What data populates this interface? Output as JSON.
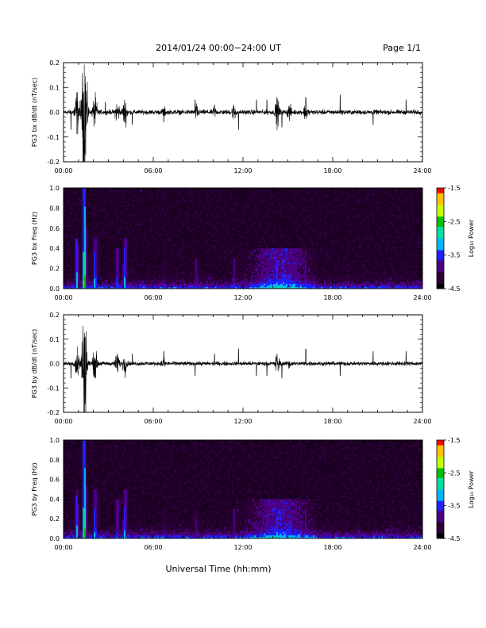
{
  "header": {
    "title": "2014/01/24  00:00−24:00 UT",
    "page": "Page 1/1"
  },
  "x_axis": {
    "label": "Universal Time (hh:mm)",
    "range_hours": [
      0,
      24
    ],
    "tick_labels": [
      "00:00",
      "06:00",
      "12:00",
      "18:00",
      "24:00"
    ],
    "tick_values": [
      0,
      6,
      12,
      18,
      24
    ]
  },
  "colorbar": {
    "label": "Log₁₀ Power",
    "range": [
      -4.5,
      -1.5
    ],
    "tick_labels": [
      "-1.5",
      "-2.5",
      "-3.5",
      "-4.5"
    ],
    "tick_values": [
      -1.5,
      -2.5,
      -3.5,
      -4.5
    ],
    "colors": [
      "#000000",
      "#2a0036",
      "#4b0082",
      "#2020ff",
      "#00b4ff",
      "#00e0a0",
      "#00c000",
      "#c0ff00",
      "#ffc000",
      "#ff0000"
    ]
  },
  "chart_data": [
    {
      "type": "line",
      "ylabel": "PG3 bx dB/dt (nT/sec)",
      "ylim": [
        -0.2,
        0.2
      ],
      "yticks": [
        -0.2,
        -0.1,
        0.0,
        0.1,
        0.2
      ],
      "ytick_labels": [
        "-0.2",
        "-0.1",
        "0.0",
        "0.1",
        "0.2"
      ],
      "x_hours_range": [
        0,
        24
      ],
      "noise_baseline_amplitude": 0.008,
      "bursts": [
        {
          "t_hours": 1.4,
          "amplitude": 0.25
        },
        {
          "t_hours": 0.9,
          "amplitude": 0.08
        },
        {
          "t_hours": 2.1,
          "amplitude": 0.06
        },
        {
          "t_hours": 3.6,
          "amplitude": 0.04
        },
        {
          "t_hours": 4.1,
          "amplitude": 0.05
        },
        {
          "t_hours": 6.7,
          "amplitude": 0.02
        },
        {
          "t_hours": 8.9,
          "amplitude": 0.03
        },
        {
          "t_hours": 10.1,
          "amplitude": 0.02
        },
        {
          "t_hours": 11.4,
          "amplitude": 0.03
        },
        {
          "t_hours": 14.3,
          "amplitude": 0.05
        },
        {
          "t_hours": 15.1,
          "amplitude": 0.03
        },
        {
          "t_hours": 16.2,
          "amplitude": 0.03
        }
      ],
      "spikes": [
        {
          "t_hours": 0.5,
          "value": -0.07
        },
        {
          "t_hours": 2.8,
          "value": 0.04
        },
        {
          "t_hours": 4.6,
          "value": -0.05
        },
        {
          "t_hours": 6.7,
          "value": -0.04
        },
        {
          "t_hours": 8.8,
          "value": 0.05
        },
        {
          "t_hours": 10.1,
          "value": 0.03
        },
        {
          "t_hours": 11.7,
          "value": -0.07
        },
        {
          "t_hours": 12.9,
          "value": 0.05
        },
        {
          "t_hours": 13.6,
          "value": 0.05
        },
        {
          "t_hours": 14.6,
          "value": -0.06
        },
        {
          "t_hours": 16.2,
          "value": 0.06
        },
        {
          "t_hours": 18.5,
          "value": 0.07
        },
        {
          "t_hours": 20.7,
          "value": -0.05
        },
        {
          "t_hours": 22.9,
          "value": 0.05
        }
      ]
    },
    {
      "type": "heatmap",
      "ylabel": "PG3 bx Freq (Hz)",
      "ylim": [
        0.0,
        1.0
      ],
      "yticks": [
        0.0,
        0.2,
        0.4,
        0.6,
        0.8,
        1.0
      ],
      "ytick_labels": [
        "0.0",
        "0.2",
        "0.4",
        "0.6",
        "0.8",
        "1.0"
      ],
      "x_hours_range": [
        0,
        24
      ],
      "background_log_power": -4.3,
      "bursts": [
        {
          "t_hours": 1.4,
          "level": -2.2,
          "fmax": 1.0
        },
        {
          "t_hours": 0.9,
          "level": -2.9,
          "fmax": 0.5
        },
        {
          "t_hours": 2.1,
          "level": -3.0,
          "fmax": 0.5
        },
        {
          "t_hours": 3.6,
          "level": -3.3,
          "fmax": 0.4
        },
        {
          "t_hours": 4.1,
          "level": -3.0,
          "fmax": 0.5
        },
        {
          "t_hours": 6.7,
          "level": -3.8,
          "fmax": 0.3
        },
        {
          "t_hours": 8.9,
          "level": -3.6,
          "fmax": 0.3
        },
        {
          "t_hours": 11.4,
          "level": -3.5,
          "fmax": 0.3
        },
        {
          "t_hours": 14.3,
          "level": -3.1,
          "fmax": 0.4
        },
        {
          "t_hours": 15.1,
          "level": -3.3,
          "fmax": 0.4
        },
        {
          "t_hours": 16.2,
          "level": -3.4,
          "fmax": 0.3
        }
      ]
    },
    {
      "type": "line",
      "ylabel": "PG3 by dB/dt (nT/sec)",
      "ylim": [
        -0.2,
        0.2
      ],
      "yticks": [
        -0.2,
        -0.1,
        0.0,
        0.1,
        0.2
      ],
      "ytick_labels": [
        "-0.2",
        "-0.1",
        "0.0",
        "0.1",
        "0.2"
      ],
      "x_hours_range": [
        0,
        24
      ],
      "noise_baseline_amplitude": 0.007,
      "bursts": [
        {
          "t_hours": 1.4,
          "amplitude": 0.2
        },
        {
          "t_hours": 0.9,
          "amplitude": 0.06
        },
        {
          "t_hours": 2.1,
          "amplitude": 0.05
        },
        {
          "t_hours": 3.6,
          "amplitude": 0.04
        },
        {
          "t_hours": 4.1,
          "amplitude": 0.04
        },
        {
          "t_hours": 6.7,
          "amplitude": 0.02
        },
        {
          "t_hours": 14.3,
          "amplitude": 0.04
        },
        {
          "t_hours": 15.1,
          "amplitude": 0.02
        }
      ],
      "spikes": [
        {
          "t_hours": 0.5,
          "value": -0.06
        },
        {
          "t_hours": 4.6,
          "value": 0.04
        },
        {
          "t_hours": 6.7,
          "value": 0.05
        },
        {
          "t_hours": 8.8,
          "value": -0.05
        },
        {
          "t_hours": 10.1,
          "value": 0.04
        },
        {
          "t_hours": 11.7,
          "value": 0.06
        },
        {
          "t_hours": 12.9,
          "value": -0.05
        },
        {
          "t_hours": 13.6,
          "value": -0.05
        },
        {
          "t_hours": 14.6,
          "value": -0.06
        },
        {
          "t_hours": 16.2,
          "value": 0.06
        },
        {
          "t_hours": 18.5,
          "value": -0.05
        },
        {
          "t_hours": 20.7,
          "value": 0.05
        },
        {
          "t_hours": 22.9,
          "value": 0.05
        }
      ]
    },
    {
      "type": "heatmap",
      "ylabel": "PG3 by Freq (Hz)",
      "ylim": [
        0.0,
        1.0
      ],
      "yticks": [
        0.0,
        0.2,
        0.4,
        0.6,
        0.8,
        1.0
      ],
      "ytick_labels": [
        "0.0",
        "0.2",
        "0.4",
        "0.6",
        "0.8",
        "1.0"
      ],
      "x_hours_range": [
        0,
        24
      ],
      "background_log_power": -4.3,
      "bursts": [
        {
          "t_hours": 1.4,
          "level": -2.3,
          "fmax": 1.0
        },
        {
          "t_hours": 0.9,
          "level": -3.0,
          "fmax": 0.5
        },
        {
          "t_hours": 2.1,
          "level": -3.1,
          "fmax": 0.5
        },
        {
          "t_hours": 3.6,
          "level": -3.4,
          "fmax": 0.4
        },
        {
          "t_hours": 4.1,
          "level": -3.1,
          "fmax": 0.5
        },
        {
          "t_hours": 6.7,
          "level": -3.8,
          "fmax": 0.3
        },
        {
          "t_hours": 8.9,
          "level": -3.7,
          "fmax": 0.3
        },
        {
          "t_hours": 11.4,
          "level": -3.6,
          "fmax": 0.3
        },
        {
          "t_hours": 14.3,
          "level": -3.2,
          "fmax": 0.4
        },
        {
          "t_hours": 15.1,
          "level": -3.4,
          "fmax": 0.4
        },
        {
          "t_hours": 16.2,
          "level": -3.5,
          "fmax": 0.3
        }
      ]
    }
  ]
}
